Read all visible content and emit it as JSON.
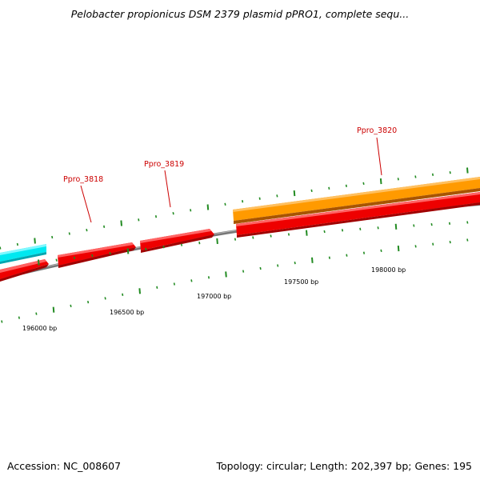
{
  "title": "Pelobacter propionicus DSM 2379 plasmid pPRO1, complete sequ...",
  "footer": {
    "accession": "Accession: NC_008607",
    "topology": "Topology: circular; Length: 202,397 bp; Genes: 195"
  },
  "ruler_labels": [
    "196000 bp",
    "196500 bp",
    "197000 bp",
    "197500 bp",
    "198000 bp"
  ],
  "gene_labels": [
    "Ppro_3818",
    "Ppro_3819",
    "Ppro_3820"
  ],
  "colors": {
    "backbone": "#808080",
    "forward_gene": "#ff0000",
    "orange_track": "#ff8c00",
    "cyan_track": "#00ffff",
    "tick": "#228b22",
    "label": "#cc0000"
  }
}
